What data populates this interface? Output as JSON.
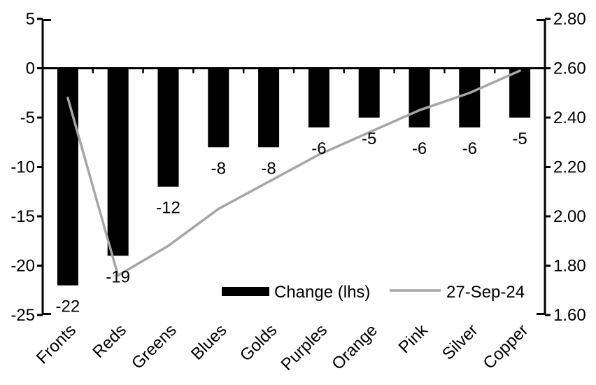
{
  "chart_data": {
    "type": "bar",
    "subtype": "bar-line-combo",
    "title": "",
    "categories": [
      "Fronts",
      "Reds",
      "Greens",
      "Blues",
      "Golds",
      "Purples",
      "Orange",
      "Pink",
      "Silver",
      "Copper"
    ],
    "series": [
      {
        "name": "Change (lhs)",
        "type": "bar",
        "axis": "left",
        "color": "#000000",
        "values": [
          -22,
          -19,
          -12,
          -8,
          -8,
          -6,
          -5,
          -6,
          -6,
          -5
        ],
        "data_labels": [
          "-22",
          "-19",
          "-12",
          "-8",
          "-8",
          "-6",
          "-5",
          "-6",
          "-6",
          "-5"
        ]
      },
      {
        "name": "27-Sep-24",
        "type": "line",
        "axis": "right",
        "color": "#a6a6a6",
        "values": [
          2.48,
          1.76,
          1.88,
          2.03,
          2.14,
          2.25,
          2.34,
          2.43,
          2.5,
          2.59
        ]
      }
    ],
    "left_axis": {
      "tick_labels": [
        "5",
        "0",
        "-5",
        "-10",
        "-15",
        "-20",
        "-25"
      ],
      "min": -25,
      "max": 5
    },
    "right_axis": {
      "tick_labels": [
        "2.80",
        "2.60",
        "2.40",
        "2.20",
        "2.00",
        "1.80",
        "1.60"
      ],
      "min": 1.6,
      "max": 2.8
    },
    "legend_position": "bottom-inside",
    "grid": false,
    "background_color": "#ffffff",
    "axis_color": "#000000"
  }
}
